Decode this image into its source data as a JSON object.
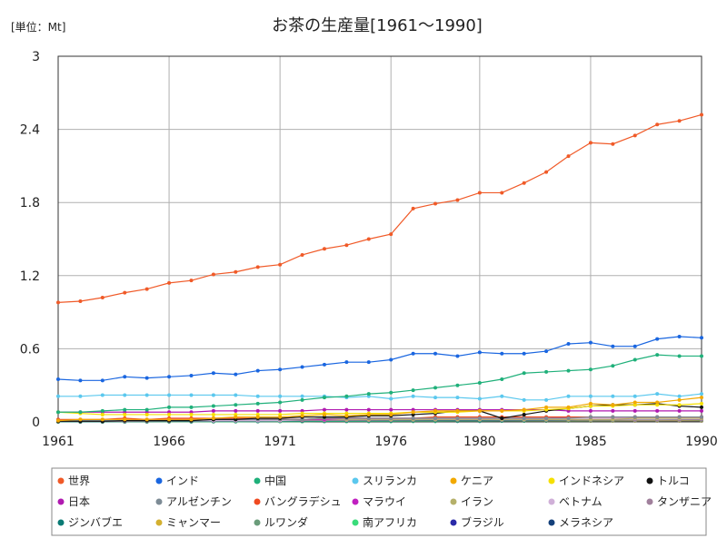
{
  "chart_data": {
    "type": "line",
    "title": "お茶の生産量[1961〜1990]",
    "unit_label": "[単位：Mt]",
    "xlabel": "",
    "ylabel": "",
    "xlim": [
      1961,
      1990
    ],
    "ylim": [
      0,
      3
    ],
    "x_ticks": [
      "1961",
      "1966",
      "1971",
      "1976",
      "1980",
      "1985",
      "1990"
    ],
    "x_tick_values": [
      1961,
      1966,
      1971,
      1976,
      1980,
      1985,
      1990
    ],
    "y_ticks": [
      "0",
      "0.6",
      "1.2",
      "1.8",
      "2.4",
      "3"
    ],
    "y_tick_values": [
      0,
      0.6,
      1.2,
      1.8,
      2.4,
      3
    ],
    "grid": true,
    "legend_position": "bottom",
    "x": [
      1961,
      1962,
      1963,
      1964,
      1965,
      1966,
      1967,
      1968,
      1969,
      1970,
      1971,
      1972,
      1973,
      1974,
      1975,
      1976,
      1977,
      1978,
      1979,
      1980,
      1981,
      1982,
      1983,
      1984,
      1985,
      1986,
      1987,
      1988,
      1989,
      1990
    ],
    "series": [
      {
        "name": "世界",
        "color": "#f05a28",
        "values": [
          0.98,
          0.99,
          1.02,
          1.06,
          1.09,
          1.14,
          1.16,
          1.21,
          1.23,
          1.27,
          1.29,
          1.37,
          1.42,
          1.45,
          1.5,
          1.54,
          1.75,
          1.79,
          1.82,
          1.88,
          1.88,
          1.96,
          2.05,
          2.18,
          2.29,
          2.28,
          2.35,
          2.44,
          2.47,
          2.52
        ]
      },
      {
        "name": "インド",
        "color": "#1a66e0",
        "values": [
          0.35,
          0.34,
          0.34,
          0.37,
          0.36,
          0.37,
          0.38,
          0.4,
          0.39,
          0.42,
          0.43,
          0.45,
          0.47,
          0.49,
          0.49,
          0.51,
          0.56,
          0.56,
          0.54,
          0.57,
          0.56,
          0.56,
          0.58,
          0.64,
          0.65,
          0.62,
          0.62,
          0.68,
          0.7,
          0.69
        ]
      },
      {
        "name": "中国",
        "color": "#1fb07a",
        "values": [
          0.08,
          0.08,
          0.09,
          0.1,
          0.1,
          0.12,
          0.12,
          0.13,
          0.14,
          0.15,
          0.16,
          0.18,
          0.2,
          0.21,
          0.23,
          0.24,
          0.26,
          0.28,
          0.3,
          0.32,
          0.35,
          0.4,
          0.41,
          0.42,
          0.43,
          0.46,
          0.51,
          0.55,
          0.54,
          0.54
        ]
      },
      {
        "name": "スリランカ",
        "color": "#5bc8ee",
        "values": [
          0.21,
          0.21,
          0.22,
          0.22,
          0.22,
          0.22,
          0.22,
          0.22,
          0.22,
          0.21,
          0.21,
          0.21,
          0.21,
          0.2,
          0.21,
          0.19,
          0.21,
          0.2,
          0.2,
          0.19,
          0.21,
          0.18,
          0.18,
          0.21,
          0.21,
          0.21,
          0.21,
          0.23,
          0.21,
          0.23
        ]
      },
      {
        "name": "ケニア",
        "color": "#f2a900",
        "values": [
          0.01,
          0.02,
          0.02,
          0.02,
          0.02,
          0.02,
          0.02,
          0.03,
          0.04,
          0.04,
          0.04,
          0.05,
          0.06,
          0.05,
          0.06,
          0.06,
          0.08,
          0.09,
          0.09,
          0.09,
          0.09,
          0.1,
          0.12,
          0.12,
          0.15,
          0.14,
          0.16,
          0.16,
          0.18,
          0.2
        ]
      },
      {
        "name": "インドネシア",
        "color": "#f5e000",
        "values": [
          0.08,
          0.07,
          0.06,
          0.06,
          0.06,
          0.06,
          0.06,
          0.06,
          0.06,
          0.06,
          0.06,
          0.07,
          0.07,
          0.07,
          0.07,
          0.07,
          0.08,
          0.08,
          0.08,
          0.09,
          0.09,
          0.09,
          0.1,
          0.11,
          0.13,
          0.13,
          0.14,
          0.14,
          0.14,
          0.15
        ]
      },
      {
        "name": "トルコ",
        "color": "#111111",
        "values": [
          0.005,
          0.005,
          0.005,
          0.01,
          0.01,
          0.01,
          0.01,
          0.02,
          0.02,
          0.03,
          0.03,
          0.04,
          0.04,
          0.04,
          0.05,
          0.05,
          0.06,
          0.07,
          0.09,
          0.09,
          0.03,
          0.06,
          0.09,
          0.11,
          0.13,
          0.14,
          0.14,
          0.15,
          0.13,
          0.12
        ]
      },
      {
        "name": "日本",
        "color": "#b01ab0",
        "values": [
          0.08,
          0.08,
          0.08,
          0.08,
          0.08,
          0.08,
          0.08,
          0.09,
          0.09,
          0.09,
          0.09,
          0.09,
          0.1,
          0.1,
          0.1,
          0.1,
          0.1,
          0.1,
          0.1,
          0.1,
          0.1,
          0.1,
          0.1,
          0.09,
          0.09,
          0.09,
          0.09,
          0.09,
          0.09,
          0.09
        ]
      },
      {
        "name": "アルゼンチン",
        "color": "#7d8b95",
        "values": [
          0.01,
          0.01,
          0.01,
          0.01,
          0.01,
          0.01,
          0.01,
          0.02,
          0.02,
          0.02,
          0.02,
          0.02,
          0.03,
          0.03,
          0.03,
          0.03,
          0.03,
          0.03,
          0.03,
          0.03,
          0.03,
          0.03,
          0.03,
          0.03,
          0.04,
          0.04,
          0.04,
          0.04,
          0.04,
          0.04
        ]
      },
      {
        "name": "バングラデシュ",
        "color": "#f04a20",
        "values": [
          0.02,
          0.02,
          0.02,
          0.03,
          0.02,
          0.03,
          0.03,
          0.03,
          0.03,
          0.03,
          0.02,
          0.02,
          0.03,
          0.03,
          0.03,
          0.03,
          0.03,
          0.04,
          0.04,
          0.04,
          0.04,
          0.04,
          0.04,
          0.04,
          0.04,
          0.04,
          0.04,
          0.04,
          0.04,
          0.04
        ]
      },
      {
        "name": "マラウイ",
        "color": "#c020c0",
        "values": [
          0.01,
          0.01,
          0.01,
          0.01,
          0.02,
          0.02,
          0.02,
          0.02,
          0.02,
          0.02,
          0.02,
          0.02,
          0.02,
          0.03,
          0.03,
          0.03,
          0.03,
          0.03,
          0.03,
          0.03,
          0.03,
          0.03,
          0.03,
          0.04,
          0.04,
          0.04,
          0.04,
          0.04,
          0.04,
          0.04
        ]
      },
      {
        "name": "イラン",
        "color": "#b5b06a",
        "values": [
          0.01,
          0.01,
          0.01,
          0.01,
          0.01,
          0.01,
          0.02,
          0.02,
          0.02,
          0.02,
          0.02,
          0.02,
          0.02,
          0.02,
          0.02,
          0.02,
          0.02,
          0.02,
          0.02,
          0.02,
          0.02,
          0.02,
          0.02,
          0.02,
          0.02,
          0.02,
          0.03,
          0.03,
          0.03,
          0.03
        ]
      },
      {
        "name": "ベトナム",
        "color": "#d0b0d8",
        "values": [
          0.01,
          0.01,
          0.01,
          0.01,
          0.01,
          0.01,
          0.01,
          0.01,
          0.01,
          0.01,
          0.01,
          0.02,
          0.02,
          0.02,
          0.02,
          0.02,
          0.02,
          0.02,
          0.02,
          0.02,
          0.02,
          0.02,
          0.03,
          0.03,
          0.03,
          0.03,
          0.03,
          0.03,
          0.03,
          0.03
        ]
      },
      {
        "name": "タンザニア",
        "color": "#a0809c",
        "values": [
          0.005,
          0.005,
          0.005,
          0.005,
          0.006,
          0.007,
          0.008,
          0.008,
          0.009,
          0.01,
          0.011,
          0.012,
          0.012,
          0.013,
          0.014,
          0.015,
          0.016,
          0.017,
          0.017,
          0.017,
          0.016,
          0.016,
          0.016,
          0.016,
          0.016,
          0.016,
          0.016,
          0.016,
          0.017,
          0.018
        ]
      },
      {
        "name": "ジンバブエ",
        "color": "#0a7a74",
        "values": [
          0.002,
          0.002,
          0.002,
          0.003,
          0.003,
          0.004,
          0.004,
          0.005,
          0.006,
          0.006,
          0.007,
          0.007,
          0.008,
          0.008,
          0.009,
          0.009,
          0.01,
          0.01,
          0.01,
          0.01,
          0.01,
          0.011,
          0.012,
          0.013,
          0.014,
          0.014,
          0.015,
          0.015,
          0.016,
          0.016
        ]
      },
      {
        "name": "ミャンマー",
        "color": "#d4b030",
        "values": [
          0.01,
          0.01,
          0.01,
          0.01,
          0.01,
          0.01,
          0.01,
          0.01,
          0.01,
          0.01,
          0.01,
          0.01,
          0.01,
          0.01,
          0.01,
          0.01,
          0.01,
          0.01,
          0.01,
          0.01,
          0.01,
          0.01,
          0.01,
          0.01,
          0.01,
          0.01,
          0.01,
          0.01,
          0.01,
          0.01
        ]
      },
      {
        "name": "ルワンダ",
        "color": "#6a9c7a",
        "values": [
          0.001,
          0.001,
          0.001,
          0.002,
          0.002,
          0.003,
          0.003,
          0.004,
          0.005,
          0.005,
          0.006,
          0.006,
          0.007,
          0.007,
          0.008,
          0.008,
          0.009,
          0.009,
          0.01,
          0.01,
          0.01,
          0.011,
          0.011,
          0.012,
          0.012,
          0.012,
          0.013,
          0.013,
          0.013,
          0.013
        ]
      },
      {
        "name": "南アフリカ",
        "color": "#3adc7a",
        "values": [
          0.001,
          0.001,
          0.001,
          0.001,
          0.001,
          0.002,
          0.002,
          0.002,
          0.002,
          0.003,
          0.003,
          0.003,
          0.004,
          0.004,
          0.005,
          0.005,
          0.006,
          0.006,
          0.007,
          0.007,
          0.008,
          0.008,
          0.009,
          0.009,
          0.01,
          0.01,
          0.011,
          0.011,
          0.012,
          0.012
        ]
      },
      {
        "name": "ブラジル",
        "color": "#2a2aa8",
        "values": [
          0.003,
          0.003,
          0.003,
          0.003,
          0.004,
          0.004,
          0.004,
          0.005,
          0.005,
          0.006,
          0.006,
          0.006,
          0.007,
          0.007,
          0.007,
          0.008,
          0.008,
          0.009,
          0.009,
          0.009,
          0.01,
          0.01,
          0.01,
          0.01,
          0.01,
          0.01,
          0.01,
          0.01,
          0.01,
          0.01
        ]
      },
      {
        "name": "メラネシア",
        "color": "#14407a",
        "values": [
          0.001,
          0.001,
          0.001,
          0.001,
          0.002,
          0.002,
          0.002,
          0.003,
          0.003,
          0.003,
          0.004,
          0.004,
          0.004,
          0.005,
          0.005,
          0.005,
          0.006,
          0.006,
          0.006,
          0.006,
          0.007,
          0.007,
          0.007,
          0.007,
          0.007,
          0.008,
          0.008,
          0.008,
          0.008,
          0.008
        ]
      }
    ]
  }
}
